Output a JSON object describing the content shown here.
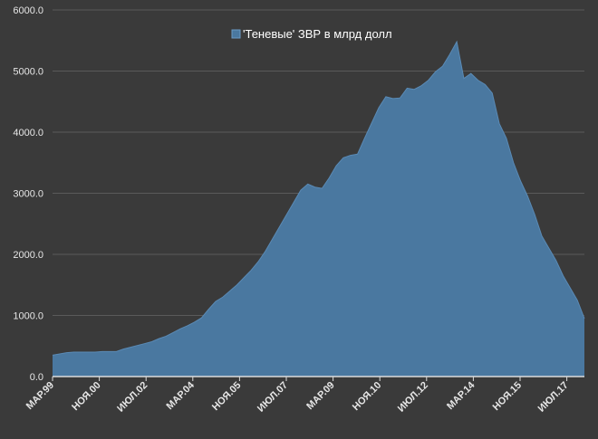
{
  "chart_data": {
    "type": "area",
    "title": "",
    "xlabel": "",
    "ylabel": "",
    "ylim": [
      0,
      6000
    ],
    "yticks": [
      "0.0",
      "1000.0",
      "2000.0",
      "3000.0",
      "4000.0",
      "5000.0",
      "6000.0"
    ],
    "grid": true,
    "legend_position": "top-center",
    "colors": {
      "fill": "#4a78a0",
      "stroke": "#5a8ab5",
      "background": "#3a3a3a",
      "text": "#e6e6e6",
      "grid": "#5a5a5a",
      "axis": "#dcdcdc"
    },
    "x_tick_labels": [
      "МАР.99",
      "НОЯ.00",
      "ИЮЛ.02",
      "МАР.04",
      "НОЯ.05",
      "ИЮЛ.07",
      "МАР.09",
      "НОЯ.10",
      "ИЮЛ.12",
      "МАР.14",
      "НОЯ.15",
      "ИЮЛ.17"
    ],
    "series": [
      {
        "name": "'Теневые' ЗВР в млрд долл",
        "values": [
          350,
          370,
          390,
          400,
          400,
          400,
          400,
          410,
          410,
          410,
          450,
          480,
          510,
          540,
          570,
          620,
          660,
          720,
          780,
          830,
          890,
          960,
          1100,
          1230,
          1300,
          1400,
          1500,
          1620,
          1740,
          1880,
          2050,
          2250,
          2450,
          2650,
          2850,
          3050,
          3150,
          3100,
          3080,
          3250,
          3450,
          3580,
          3620,
          3640,
          3900,
          4150,
          4400,
          4580,
          4550,
          4560,
          4720,
          4700,
          4760,
          4850,
          4990,
          5080,
          5270,
          5480,
          4880,
          4960,
          4850,
          4780,
          4640,
          4140,
          3900,
          3500,
          3200,
          2950,
          2650,
          2300,
          2100,
          1900,
          1650,
          1450,
          1250,
          950
        ]
      }
    ]
  }
}
